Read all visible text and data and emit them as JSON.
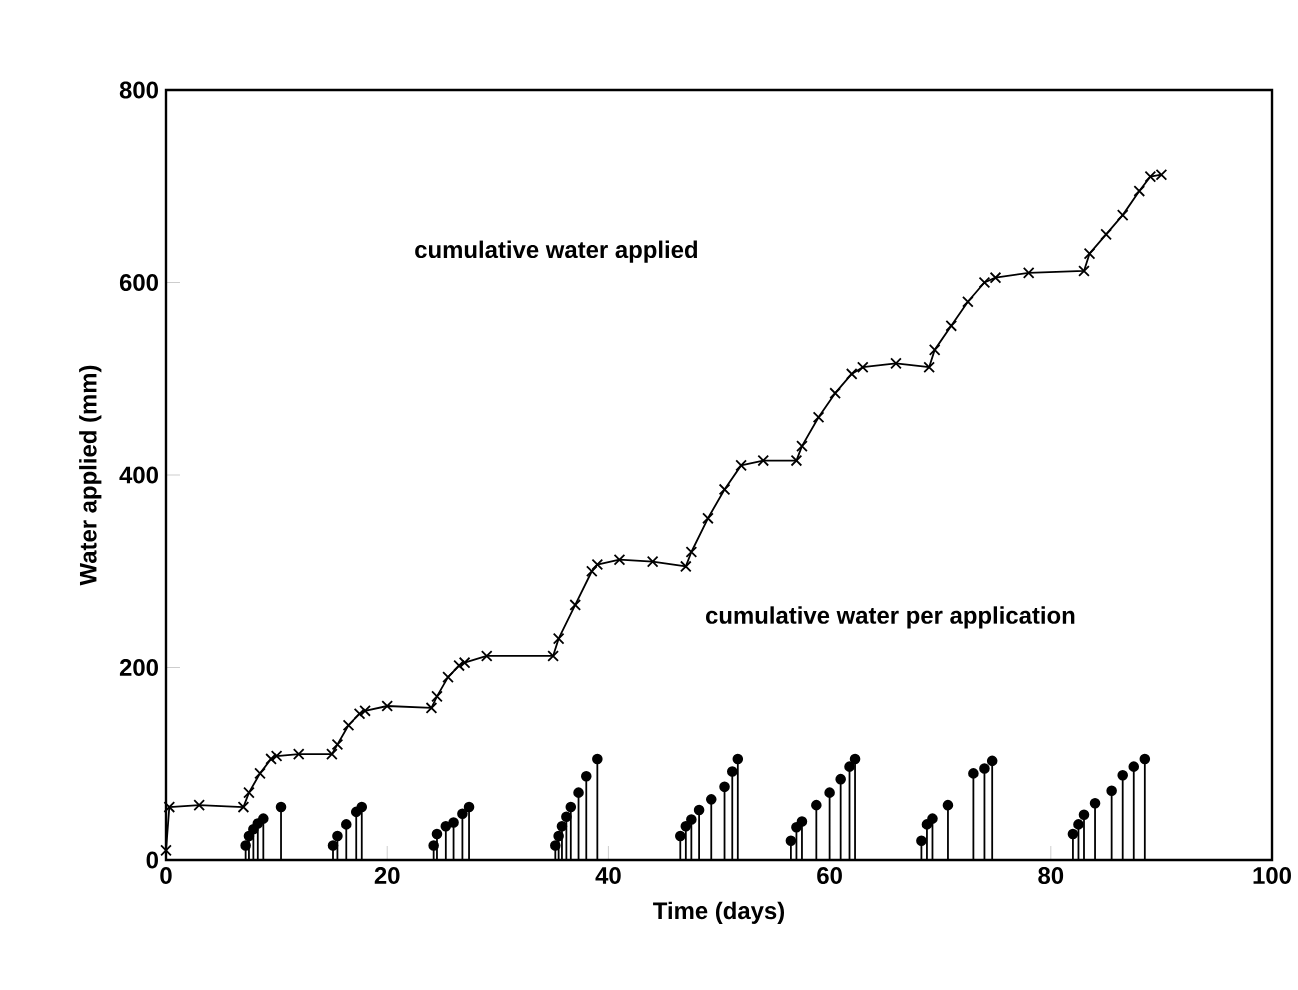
{
  "chart_data": {
    "type": "line",
    "xlabel": "Time (days)",
    "ylabel": "Water applied (mm)",
    "xlim": [
      0,
      100
    ],
    "ylim": [
      0,
      800
    ],
    "xticks": [
      0,
      20,
      40,
      60,
      80,
      100
    ],
    "yticks": [
      0,
      200,
      400,
      600,
      800
    ],
    "series": [
      {
        "color": "#000000",
        "marker": "cross",
        "line_style": "solid",
        "x": [
          0,
          0.3,
          3,
          7,
          7.5,
          8.5,
          9.5,
          10,
          12,
          15,
          15.5,
          16.5,
          17.5,
          18,
          20,
          24,
          24.5,
          25.5,
          26.5,
          27,
          29,
          35,
          35.5,
          37,
          38.5,
          39,
          41,
          44,
          47,
          47.5,
          49,
          50.5,
          52,
          54,
          57,
          57.5,
          59,
          60.5,
          62,
          63,
          66,
          69,
          69.5,
          71,
          72.5,
          74,
          75,
          78,
          83,
          83.5,
          85,
          86.5,
          88,
          89,
          90
        ],
        "values": [
          10,
          55,
          57,
          55,
          70,
          90,
          105,
          108,
          110,
          110,
          120,
          140,
          152,
          155,
          160,
          158,
          170,
          190,
          202,
          205,
          212,
          212,
          230,
          265,
          300,
          307,
          312,
          310,
          305,
          320,
          355,
          385,
          410,
          415,
          415,
          430,
          460,
          485,
          505,
          512,
          516,
          512,
          530,
          555,
          580,
          600,
          605,
          610,
          612,
          630,
          650,
          670,
          695,
          710,
          712
        ]
      },
      {
        "type": "lollipop",
        "color": "#000000",
        "marker": "circle",
        "x": [
          7.2,
          7.5,
          7.9,
          8.3,
          8.8,
          10.4,
          15.1,
          15.5,
          16.3,
          17.2,
          17.7,
          24.2,
          24.5,
          25.3,
          26,
          26.8,
          27.4,
          35.2,
          35.5,
          35.8,
          36.2,
          36.6,
          37.3,
          38,
          39,
          46.5,
          47,
          47.5,
          48.2,
          49.3,
          50.5,
          51.2,
          51.7,
          56.5,
          57,
          57.5,
          58.8,
          60,
          61,
          61.8,
          62.3,
          68.3,
          68.8,
          69.3,
          70.7,
          73,
          74,
          74.7,
          82,
          82.5,
          83,
          84,
          85.5,
          86.5,
          87.5,
          88.5
        ],
        "values": [
          15,
          25,
          32,
          38,
          43,
          55,
          15,
          25,
          37,
          50,
          55,
          15,
          27,
          35,
          39,
          48,
          55,
          15,
          25,
          35,
          45,
          55,
          70,
          87,
          105,
          25,
          35,
          42,
          52,
          63,
          76,
          92,
          105,
          20,
          34,
          40,
          57,
          70,
          84,
          97,
          105,
          20,
          37,
          43,
          57,
          90,
          95,
          103,
          27,
          37,
          47,
          59,
          72,
          88,
          97,
          105
        ]
      }
    ],
    "annotations": [
      "cumulative water applied",
      "cumulative water per application"
    ]
  }
}
